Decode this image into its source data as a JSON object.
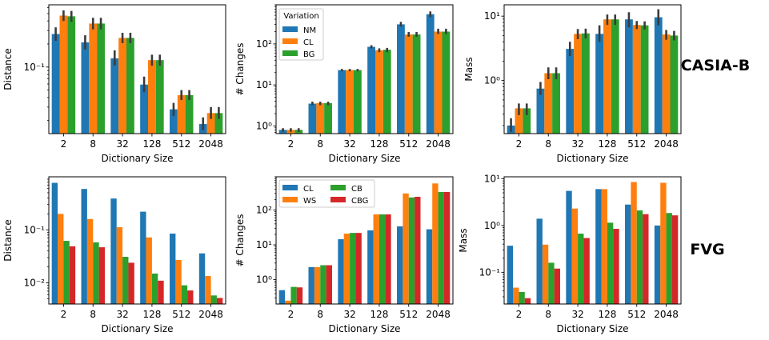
{
  "colors": {
    "blue": "#1f77b4",
    "orange": "#ff7f0e",
    "green": "#2ca02c",
    "red": "#d62728",
    "error_bar": "#3b3b3b"
  },
  "row_labels": [
    "CASIA-B",
    "FVG"
  ],
  "chart_data": [
    {
      "id": "casia-distance",
      "type": "bar",
      "categories": [
        "2",
        "8",
        "32",
        "128",
        "512",
        "2048"
      ],
      "series": [
        {
          "name": "NM",
          "values": [
            0.27,
            0.21,
            0.13,
            0.059,
            0.028,
            0.018
          ],
          "err": [
            [
              0.22,
              0.33
            ],
            [
              0.17,
              0.26
            ],
            [
              0.105,
              0.165
            ],
            [
              0.047,
              0.075
            ],
            [
              0.023,
              0.034
            ],
            [
              0.015,
              0.022
            ]
          ]
        },
        {
          "name": "CL",
          "values": [
            0.47,
            0.37,
            0.24,
            0.123,
            0.043,
            0.025
          ],
          "err": [
            [
              0.4,
              0.55
            ],
            [
              0.31,
              0.44
            ],
            [
              0.205,
              0.28
            ],
            [
              0.104,
              0.145
            ],
            [
              0.037,
              0.05
            ],
            [
              0.021,
              0.03
            ]
          ]
        },
        {
          "name": "BG",
          "values": [
            0.46,
            0.37,
            0.24,
            0.123,
            0.043,
            0.025
          ],
          "err": [
            [
              0.39,
              0.54
            ],
            [
              0.31,
              0.44
            ],
            [
              0.205,
              0.28
            ],
            [
              0.104,
              0.145
            ],
            [
              0.037,
              0.05
            ],
            [
              0.021,
              0.03
            ]
          ]
        }
      ],
      "xlabel": "Dictionary Size",
      "ylabel": "Distance",
      "yscale": "log",
      "ylim": [
        0.0135,
        0.65
      ],
      "yticks": [
        0.1
      ],
      "ytick_labels": [
        "10⁻¹"
      ],
      "legend": null
    },
    {
      "id": "casia-changes",
      "type": "bar",
      "categories": [
        "2",
        "8",
        "32",
        "128",
        "512",
        "2048"
      ],
      "series": [
        {
          "name": "NM",
          "values": [
            0.8,
            3.5,
            23,
            85,
            300,
            530
          ],
          "err": [
            [
              0.72,
              0.88
            ],
            [
              3.2,
              3.9
            ],
            [
              21.5,
              24.5
            ],
            [
              78,
              93
            ],
            [
              265,
              345
            ],
            [
              450,
              620
            ]
          ]
        },
        {
          "name": "CL",
          "values": [
            0.8,
            3.6,
            23,
            70,
            170,
            200
          ],
          "err": [
            [
              0.72,
              0.88
            ],
            [
              3.2,
              3.9
            ],
            [
              21.5,
              24.5
            ],
            [
              63,
              78
            ],
            [
              150,
              195
            ],
            [
              175,
              235
            ]
          ]
        },
        {
          "name": "BG",
          "values": [
            0.8,
            3.6,
            23,
            72,
            170,
            200
          ],
          "err": [
            [
              0.72,
              0.88
            ],
            [
              3.2,
              3.9
            ],
            [
              21.5,
              24.5
            ],
            [
              63,
              80
            ],
            [
              150,
              195
            ],
            [
              175,
              235
            ]
          ]
        }
      ],
      "xlabel": "Dictionary Size",
      "ylabel": "# Changes",
      "yscale": "log",
      "ylim": [
        0.65,
        900
      ],
      "yticks": [
        1,
        10,
        100
      ],
      "ytick_labels": [
        "10⁰",
        "10¹",
        "10²"
      ],
      "legend": {
        "title": "Variation",
        "entries": [
          "NM",
          "CL",
          "BG"
        ],
        "location": "upper-left",
        "columns": 1
      }
    },
    {
      "id": "casia-mass",
      "type": "bar",
      "categories": [
        "2",
        "8",
        "32",
        "128",
        "512",
        "2048"
      ],
      "series": [
        {
          "name": "NM",
          "values": [
            0.2,
            0.75,
            3.1,
            5.3,
            8.9,
            9.6
          ],
          "err": [
            [
              0.16,
              0.26
            ],
            [
              0.6,
              0.95
            ],
            [
              2.4,
              4.0
            ],
            [
              4.0,
              7.2
            ],
            [
              6.7,
              11.5
            ],
            [
              7.2,
              12.8
            ]
          ]
        },
        {
          "name": "CL",
          "values": [
            0.37,
            1.3,
            5.3,
            8.9,
            7.3,
            5.2
          ],
          "err": [
            [
              0.29,
              0.44
            ],
            [
              1.05,
              1.6
            ],
            [
              4.4,
              6.3
            ],
            [
              7.3,
              10.6
            ],
            [
              6.3,
              8.4
            ],
            [
              4.3,
              6.1
            ]
          ]
        },
        {
          "name": "BG",
          "values": [
            0.37,
            1.3,
            5.4,
            8.9,
            7.2,
            5.0
          ],
          "err": [
            [
              0.29,
              0.44
            ],
            [
              1.05,
              1.6
            ],
            [
              4.5,
              6.4
            ],
            [
              7.3,
              10.6
            ],
            [
              6.2,
              8.3
            ],
            [
              4.2,
              5.9
            ]
          ]
        }
      ],
      "xlabel": "Dictionary Size",
      "ylabel": "Mass",
      "yscale": "log",
      "ylim": [
        0.15,
        15
      ],
      "yticks": [
        1,
        10
      ],
      "ytick_labels": [
        "10⁰",
        "10¹"
      ],
      "legend": null
    },
    {
      "id": "fvg-distance",
      "type": "bar",
      "categories": [
        "2",
        "8",
        "32",
        "128",
        "512",
        "2048"
      ],
      "series": [
        {
          "name": "CL",
          "values": [
            0.77,
            0.59,
            0.39,
            0.22,
            0.085,
            0.036
          ]
        },
        {
          "name": "WS",
          "values": [
            0.2,
            0.16,
            0.112,
            0.072,
            0.027,
            0.0135
          ]
        },
        {
          "name": "CB",
          "values": [
            0.062,
            0.058,
            0.031,
            0.015,
            0.009,
            0.0058
          ]
        },
        {
          "name": "CBG",
          "values": [
            0.049,
            0.047,
            0.024,
            0.011,
            0.0072,
            0.0052
          ]
        }
      ],
      "xlabel": "Dictionary Size",
      "ylabel": "Distance",
      "yscale": "log",
      "ylim": [
        0.004,
        1.0
      ],
      "yticks": [
        0.01,
        0.1
      ],
      "ytick_labels": [
        "10⁻²",
        "10⁻¹"
      ],
      "legend": null
    },
    {
      "id": "fvg-changes",
      "type": "bar",
      "categories": [
        "2",
        "8",
        "32",
        "128",
        "512",
        "2048"
      ],
      "series": [
        {
          "name": "CL",
          "values": [
            0.5,
            2.3,
            14.5,
            26,
            34,
            28
          ]
        },
        {
          "name": "WS",
          "values": [
            0.25,
            2.3,
            21,
            75,
            300,
            580
          ]
        },
        {
          "name": "CB",
          "values": [
            0.62,
            2.6,
            22,
            75,
            230,
            330
          ]
        },
        {
          "name": "CBG",
          "values": [
            0.6,
            2.6,
            22,
            75,
            240,
            330
          ]
        }
      ],
      "xlabel": "Dictionary Size",
      "ylabel": "# Changes",
      "yscale": "log",
      "ylim": [
        0.2,
        900
      ],
      "yticks": [
        1,
        10,
        100
      ],
      "ytick_labels": [
        "10⁰",
        "10¹",
        "10²"
      ],
      "legend": {
        "title": "",
        "entries": [
          "CL",
          "WS",
          "CB",
          "CBG"
        ],
        "location": "upper-left",
        "columns": 2
      }
    },
    {
      "id": "fvg-mass",
      "type": "bar",
      "categories": [
        "2",
        "8",
        "32",
        "128",
        "512",
        "2048"
      ],
      "series": [
        {
          "name": "CL",
          "values": [
            0.37,
            1.4,
            5.5,
            6.0,
            2.8,
            1.0
          ]
        },
        {
          "name": "WS",
          "values": [
            0.047,
            0.39,
            2.3,
            6.0,
            8.5,
            8.2
          ]
        },
        {
          "name": "CB",
          "values": [
            0.038,
            0.16,
            0.67,
            1.15,
            2.1,
            1.85
          ]
        },
        {
          "name": "CBG",
          "values": [
            0.028,
            0.12,
            0.54,
            0.85,
            1.75,
            1.65
          ]
        }
      ],
      "xlabel": "Dictionary Size",
      "ylabel": "Mass",
      "yscale": "log",
      "ylim": [
        0.021,
        11
      ],
      "yticks": [
        0.1,
        1,
        10
      ],
      "ytick_labels": [
        "10⁻¹",
        "10⁰",
        "10¹"
      ],
      "legend": null
    }
  ]
}
